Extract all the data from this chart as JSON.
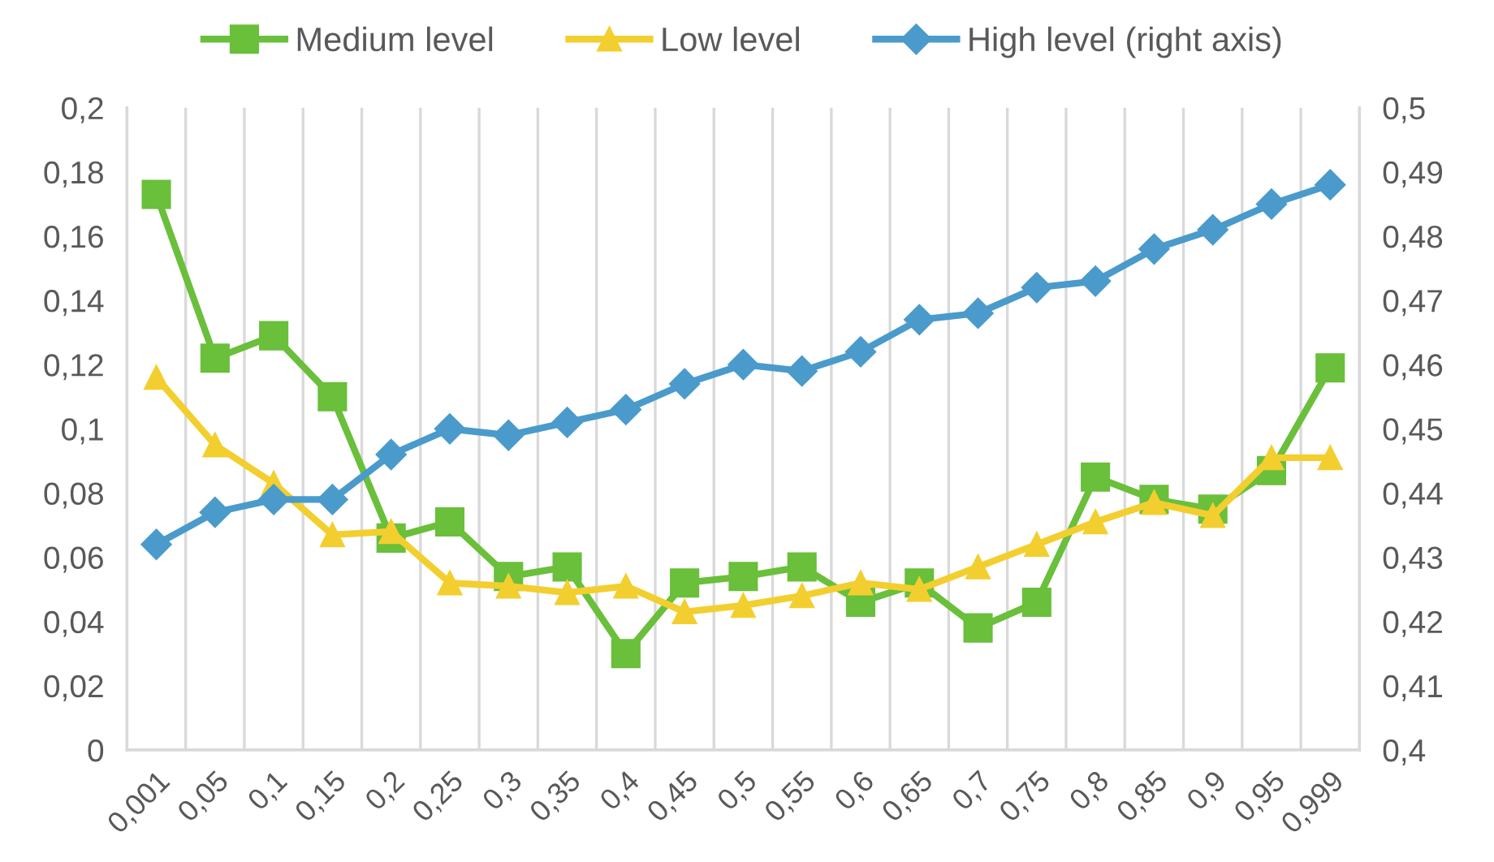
{
  "chart_data": {
    "type": "line",
    "categories": [
      "0,001",
      "0,05",
      "0,1",
      "0,15",
      "0,2",
      "0,25",
      "0,3",
      "0,35",
      "0,4",
      "0,45",
      "0,5",
      "0,55",
      "0,6",
      "0,65",
      "0,7",
      "0,75",
      "0,8",
      "0,85",
      "0,9",
      "0,95",
      "0,999"
    ],
    "series": [
      {
        "name": "Medium level",
        "color": "#6abf3b",
        "marker": "square",
        "values": [
          0.173,
          0.122,
          0.129,
          0.11,
          0.066,
          0.071,
          0.054,
          0.057,
          0.03,
          0.052,
          0.054,
          0.057,
          0.046,
          0.052,
          0.038,
          0.046,
          0.085,
          0.078,
          0.075,
          0.087,
          0.119
        ]
      },
      {
        "name": "Low level",
        "color": "#f2cf2f",
        "marker": "triangle",
        "values": [
          0.116,
          0.095,
          0.083,
          0.067,
          0.068,
          0.052,
          0.051,
          0.049,
          0.051,
          0.043,
          0.045,
          0.048,
          0.052,
          0.05,
          0.057,
          0.064,
          0.071,
          0.077,
          0.073,
          0.091,
          0.091
        ]
      },
      {
        "name": "High level (right axis)",
        "color": "#4a9bcb",
        "marker": "diamond",
        "axis": "y2",
        "values": [
          0.432,
          0.437,
          0.439,
          0.439,
          0.446,
          0.45,
          0.449,
          0.451,
          0.453,
          0.457,
          0.46,
          0.459,
          0.462,
          0.467,
          0.468,
          0.472,
          0.473,
          0.478,
          0.481,
          0.485,
          0.488
        ]
      }
    ],
    "ylim": [
      0,
      0.2
    ],
    "yticks": [
      0,
      {
        "value": 0.02,
        "label": "0,02"
      },
      {
        "value": 0.04,
        "label": "0,04"
      },
      {
        "value": 0.06,
        "label": "0,06"
      },
      {
        "value": 0.08,
        "label": "0,08"
      },
      {
        "value": 0.1,
        "label": "0,1"
      },
      {
        "value": 0.12,
        "label": "0,12"
      },
      {
        "value": 0.14,
        "label": "0,14"
      },
      {
        "value": 0.16,
        "label": "0,16"
      },
      {
        "value": 0.18,
        "label": "0,18"
      },
      {
        "value": 0.2,
        "label": "0,2"
      }
    ],
    "y2lim": [
      0.4,
      0.5
    ],
    "y2ticks": [
      {
        "value": 0.4,
        "label": "0,4"
      },
      {
        "value": 0.41,
        "label": "0,41"
      },
      {
        "value": 0.42,
        "label": "0,42"
      },
      {
        "value": 0.43,
        "label": "0,43"
      },
      {
        "value": 0.44,
        "label": "0,44"
      },
      {
        "value": 0.45,
        "label": "0,45"
      },
      {
        "value": 0.46,
        "label": "0,46"
      },
      {
        "value": 0.47,
        "label": "0,47"
      },
      {
        "value": 0.48,
        "label": "0,48"
      },
      {
        "value": 0.49,
        "label": "0,49"
      },
      {
        "value": 0.5,
        "label": "0,5"
      }
    ],
    "grid": "x",
    "legend": "top",
    "line_style": "solid"
  }
}
